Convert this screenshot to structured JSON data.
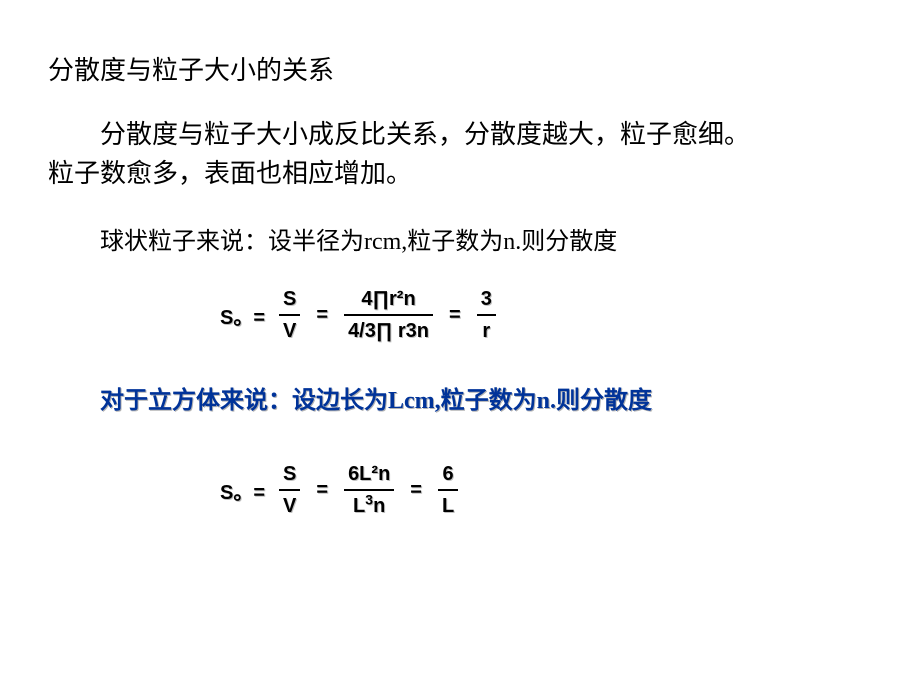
{
  "title": "分散度与粒子大小的关系",
  "para1_a": "分散度与粒子大小成反比关系，分散度越大，粒子愈细。",
  "para1_b": "粒子数愈多，表面也相应增加。",
  "sphere_text": "球状粒子来说：设半径为rcm,粒子数为n.则分散度",
  "cube_text": "对于立方体来说：设边长为Lcm,粒子数为n.则分散度",
  "f1": {
    "lhs": "S。=",
    "frac1_num": "S",
    "frac1_den": "V",
    "eq": "=",
    "frac2_num": "4∏r²n",
    "frac2_den": "4/3∏ r3n",
    "frac3_num": "3",
    "frac3_den": "r"
  },
  "f2": {
    "lhs": "S。=",
    "frac1_num": "S",
    "frac1_den": "V",
    "eq": "=",
    "frac2_num": "6L²n",
    "frac2_den_a": "L",
    "frac2_den_sup": "3",
    "frac2_den_b": "n",
    "frac3_num": "6",
    "frac3_den": "L"
  },
  "colors": {
    "text_black": "#000000",
    "cube_blue": "#003399",
    "background": "#ffffff"
  }
}
